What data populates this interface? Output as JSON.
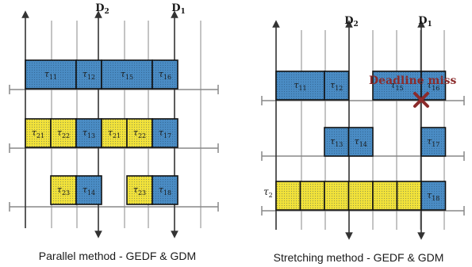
{
  "colors": {
    "blue": "#4a8cc4",
    "yellow": "#f2e23a",
    "miss": "#8b2b2b",
    "axis": "#333333",
    "grid": "#888888"
  },
  "left": {
    "caption": "Parallel method - GEDF & GDM",
    "deadlines": [
      {
        "base": "D",
        "sub": "2"
      },
      {
        "base": "D",
        "sub": "1"
      }
    ],
    "rows": [
      [
        {
          "base": "τ",
          "sub": "11",
          "color": "blue",
          "span": 2
        },
        {
          "base": "τ",
          "sub": "12",
          "color": "blue",
          "span": 1
        },
        {
          "base": "τ",
          "sub": "15",
          "color": "blue",
          "span": 2
        },
        {
          "base": "τ",
          "sub": "16",
          "color": "blue",
          "span": 1
        }
      ],
      [
        {
          "base": "τ",
          "sub": "21",
          "color": "yellow",
          "span": 1
        },
        {
          "base": "τ",
          "sub": "22",
          "color": "yellow",
          "span": 1
        },
        {
          "base": "τ",
          "sub": "13",
          "color": "blue",
          "span": 1
        },
        {
          "base": "τ",
          "sub": "21",
          "color": "yellow",
          "span": 1
        },
        {
          "base": "τ",
          "sub": "22",
          "color": "yellow",
          "span": 1
        },
        {
          "base": "τ",
          "sub": "17",
          "color": "blue",
          "span": 1
        }
      ],
      [
        {
          "gap": 1
        },
        {
          "base": "τ",
          "sub": "23",
          "color": "yellow",
          "span": 1
        },
        {
          "base": "τ",
          "sub": "14",
          "color": "blue",
          "span": 1
        },
        {
          "gap": 1
        },
        {
          "base": "τ",
          "sub": "23",
          "color": "yellow",
          "span": 1
        },
        {
          "base": "τ",
          "sub": "18",
          "color": "blue",
          "span": 1
        }
      ]
    ]
  },
  "right": {
    "caption": "Stretching method - GEDF & GDM",
    "deadlines": [
      {
        "base": "D",
        "sub": "2"
      },
      {
        "base": "D",
        "sub": "1"
      }
    ],
    "miss_label": "Deadline miss",
    "side_label": {
      "base": "τ",
      "sub": "2"
    },
    "rows": [
      [
        {
          "base": "τ",
          "sub": "11",
          "color": "blue",
          "span": 2
        },
        {
          "base": "τ",
          "sub": "12",
          "color": "blue",
          "span": 1
        },
        {
          "gap": 1
        },
        {
          "base": "τ",
          "sub": "15",
          "color": "blue",
          "span": 2
        },
        {
          "base": "τ",
          "sub": "16",
          "color": "blue",
          "span": 1
        }
      ],
      [
        {
          "gap": 2
        },
        {
          "base": "τ",
          "sub": "13",
          "color": "blue",
          "span": 1
        },
        {
          "base": "τ",
          "sub": "14",
          "color": "blue",
          "span": 1
        },
        {
          "gap": 2
        },
        {
          "base": "τ",
          "sub": "17",
          "color": "blue",
          "span": 1
        }
      ],
      [
        {
          "base": "",
          "sub": "",
          "color": "yellow",
          "span": 1
        },
        {
          "base": "",
          "sub": "",
          "color": "yellow",
          "span": 1
        },
        {
          "base": "",
          "sub": "",
          "color": "yellow",
          "span": 1
        },
        {
          "base": "",
          "sub": "",
          "color": "yellow",
          "span": 1
        },
        {
          "base": "",
          "sub": "",
          "color": "yellow",
          "span": 1
        },
        {
          "base": "",
          "sub": "",
          "color": "yellow",
          "span": 1
        },
        {
          "base": "τ",
          "sub": "18",
          "color": "blue",
          "span": 1
        }
      ]
    ]
  }
}
